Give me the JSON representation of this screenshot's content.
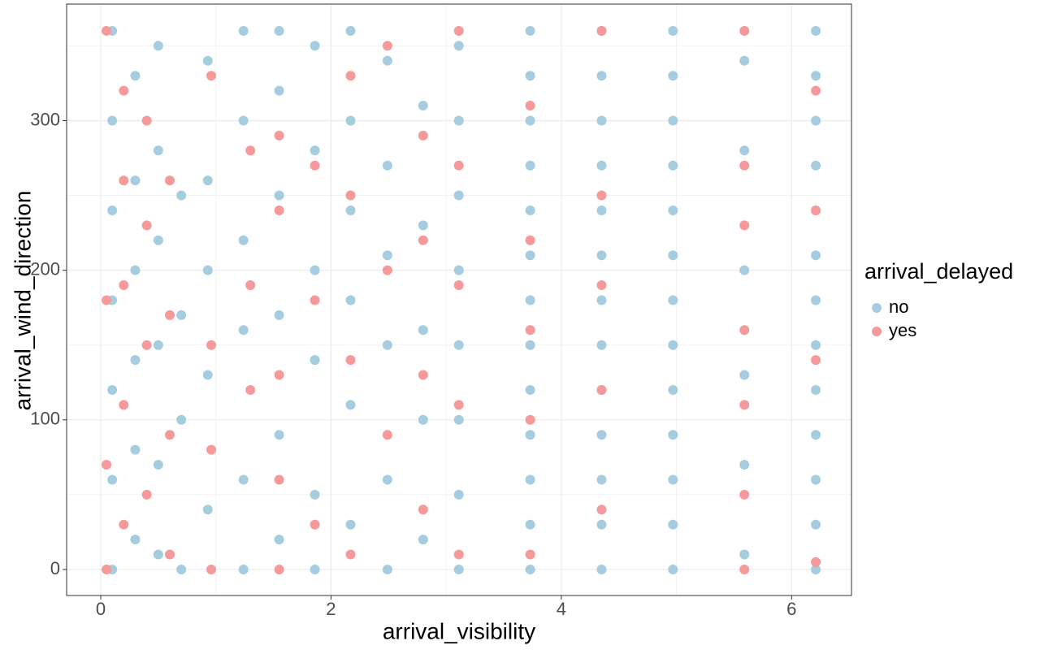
{
  "chart_data": {
    "type": "scatter",
    "x_label": "arrival_visibility",
    "y_label": "arrival_wind_direction",
    "legend_title": "arrival_delayed",
    "legend": "right",
    "grid": true,
    "xlim": [
      -0.296,
      6.52
    ],
    "ylim": [
      -17.4,
      377.9
    ],
    "xticks": [
      0,
      2,
      4,
      6
    ],
    "yticks": [
      0,
      100,
      200,
      300
    ],
    "xminorticks": [
      1,
      3,
      5
    ],
    "yminorticks": [
      50,
      150,
      250,
      350
    ],
    "series": [
      {
        "name": "no",
        "color": "#a6cce0",
        "x": [
          0.1,
          0.1,
          0.1,
          0.1,
          0.1,
          0.1,
          0.1,
          0.3,
          0.3,
          0.3,
          0.3,
          0.3,
          0.3,
          0.5,
          0.5,
          0.5,
          0.5,
          0.5,
          0.5,
          0.7,
          0.7,
          0.7,
          0.7,
          0.93,
          0.93,
          0.93,
          0.93,
          0.93,
          1.24,
          1.24,
          1.24,
          1.24,
          1.24,
          1.24,
          1.55,
          1.55,
          1.55,
          1.55,
          1.55,
          1.55,
          1.86,
          1.86,
          1.86,
          1.86,
          1.86,
          1.86,
          2.17,
          2.17,
          2.17,
          2.17,
          2.17,
          2.17,
          2.49,
          2.49,
          2.49,
          2.49,
          2.49,
          2.49,
          2.8,
          2.8,
          2.8,
          2.8,
          2.8,
          3.11,
          3.11,
          3.11,
          3.11,
          3.11,
          3.11,
          3.11,
          3.11,
          3.73,
          3.73,
          3.73,
          3.73,
          3.73,
          3.73,
          3.73,
          3.73,
          3.73,
          3.73,
          3.73,
          3.73,
          3.73,
          4.35,
          4.35,
          4.35,
          4.35,
          4.35,
          4.35,
          4.35,
          4.35,
          4.35,
          4.35,
          4.35,
          4.35,
          4.35,
          4.97,
          4.97,
          4.97,
          4.97,
          4.97,
          4.97,
          4.97,
          4.97,
          4.97,
          4.97,
          4.97,
          4.97,
          4.97,
          5.59,
          5.59,
          5.59,
          5.59,
          5.59,
          5.59,
          6.21,
          6.21,
          6.21,
          6.21,
          6.21,
          6.21,
          6.21,
          6.21,
          6.21,
          6.21,
          6.21,
          6.21,
          6.21
        ],
        "y": [
          0,
          60,
          120,
          180,
          240,
          300,
          360,
          20,
          80,
          140,
          200,
          260,
          330,
          10,
          70,
          150,
          220,
          280,
          350,
          0,
          100,
          170,
          250,
          40,
          130,
          200,
          260,
          340,
          0,
          60,
          160,
          220,
          300,
          360,
          20,
          90,
          170,
          250,
          320,
          360,
          0,
          50,
          140,
          200,
          280,
          350,
          30,
          110,
          180,
          240,
          300,
          360,
          0,
          60,
          150,
          210,
          270,
          340,
          20,
          100,
          160,
          230,
          310,
          0,
          50,
          100,
          150,
          200,
          250,
          300,
          350,
          0,
          30,
          60,
          90,
          120,
          150,
          180,
          210,
          240,
          270,
          300,
          330,
          360,
          0,
          30,
          60,
          90,
          120,
          150,
          180,
          210,
          240,
          270,
          300,
          330,
          360,
          0,
          30,
          60,
          90,
          120,
          150,
          180,
          210,
          240,
          270,
          300,
          330,
          360,
          10,
          70,
          130,
          200,
          280,
          340,
          0,
          30,
          60,
          90,
          120,
          150,
          180,
          210,
          240,
          270,
          300,
          330,
          360
        ]
      },
      {
        "name": "yes",
        "color": "#f6999a",
        "x": [
          0.05,
          0.05,
          0.05,
          0.05,
          0.2,
          0.2,
          0.2,
          0.2,
          0.2,
          0.4,
          0.4,
          0.4,
          0.4,
          0.6,
          0.6,
          0.6,
          0.6,
          0.96,
          0.96,
          0.96,
          0.96,
          1.3,
          1.3,
          1.3,
          1.55,
          1.55,
          1.55,
          1.55,
          1.55,
          1.86,
          1.86,
          1.86,
          2.17,
          2.17,
          2.17,
          2.17,
          2.49,
          2.49,
          2.49,
          2.8,
          2.8,
          2.8,
          2.8,
          3.11,
          3.11,
          3.11,
          3.11,
          3.11,
          3.73,
          3.73,
          3.73,
          3.73,
          3.73,
          4.35,
          4.35,
          4.35,
          4.35,
          4.35,
          5.59,
          5.59,
          5.59,
          5.59,
          5.59,
          5.59,
          5.59,
          6.21,
          6.21,
          6.21,
          6.21
        ],
        "y": [
          0,
          70,
          180,
          360,
          30,
          110,
          190,
          260,
          320,
          50,
          150,
          230,
          300,
          10,
          90,
          170,
          260,
          0,
          80,
          150,
          330,
          120,
          190,
          280,
          0,
          60,
          130,
          240,
          290,
          30,
          180,
          270,
          10,
          140,
          250,
          330,
          90,
          200,
          350,
          40,
          130,
          220,
          290,
          10,
          110,
          190,
          270,
          360,
          10,
          100,
          160,
          220,
          310,
          40,
          120,
          190,
          250,
          360,
          0,
          50,
          110,
          160,
          230,
          270,
          360,
          5,
          140,
          240,
          320
        ]
      }
    ]
  }
}
